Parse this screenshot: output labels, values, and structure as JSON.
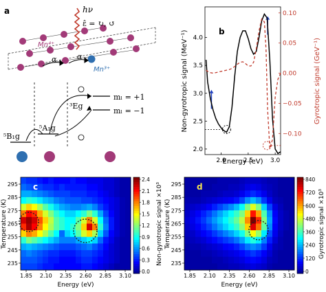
{
  "panels": {
    "a": {
      "letter": "a",
      "photon": "hν",
      "polarization": "ε̂ = ↻, ↺",
      "mn4": "Mn⁴⁺",
      "mn3": "Mn³⁺",
      "alpha1": "α",
      "alpha2": "α",
      "level_5B1g": "⁵B₁g",
      "level_5A1g": "⁵A₁g",
      "level_3Eg": "³Eg",
      "ml_plus": "mₗ = +1",
      "ml_minus": "mₗ = −1"
    },
    "b": {
      "letter": "b"
    },
    "c": {
      "letter": "c"
    },
    "d": {
      "letter": "d"
    }
  },
  "chart_data": [
    {
      "type": "line",
      "panel": "b",
      "xlabel": "Energy (eV)",
      "ylabel": "Non-gyrotropic signal (MeV⁻¹)",
      "y2label": "Gyrotropic signal (GeV⁻¹)",
      "xlim": [
        1.7,
        3.1
      ],
      "ylim": [
        1.9,
        4.55
      ],
      "y2lim": [
        -0.135,
        0.11
      ],
      "xticks": [
        "2.0",
        "2.5",
        "3.0"
      ],
      "yticks": [
        "2.0",
        "2.5",
        "3.0",
        "3.5",
        "4.0"
      ],
      "y2ticks": [
        "−0.10",
        "−0.05",
        "0.00",
        "0.05",
        "0.10"
      ],
      "series": [
        {
          "axis": "left",
          "color": "#000000",
          "style": "solid",
          "x": [
            1.72,
            1.75,
            1.8,
            1.85,
            1.9,
            1.95,
            2.0,
            2.05,
            2.1,
            2.15,
            2.2,
            2.25,
            2.3,
            2.35,
            2.4,
            2.45,
            2.5,
            2.55,
            2.6,
            2.65,
            2.7,
            2.75,
            2.8,
            2.85,
            2.9,
            2.95,
            3.0,
            3.05,
            3.1
          ],
          "y": [
            3.6,
            3.2,
            2.9,
            2.7,
            2.55,
            2.45,
            2.38,
            2.33,
            2.3,
            2.4,
            2.75,
            3.3,
            3.75,
            4.0,
            4.12,
            4.12,
            3.98,
            3.8,
            3.7,
            3.75,
            4.0,
            4.3,
            4.42,
            4.35,
            3.6,
            2.55,
            2.0,
            1.92,
            1.95
          ]
        },
        {
          "axis": "right",
          "color": "#c0392b",
          "style": "dashed",
          "x": [
            1.72,
            1.75,
            1.8,
            1.85,
            1.9,
            1.95,
            2.0,
            2.05,
            2.1,
            2.15,
            2.2,
            2.25,
            2.3,
            2.35,
            2.4,
            2.45,
            2.5,
            2.55,
            2.6,
            2.65,
            2.7,
            2.75,
            2.8,
            2.83,
            2.86,
            2.9,
            2.95,
            3.0,
            3.05,
            3.1
          ],
          "y": [
            0.005,
            0.003,
            0.001,
            0.0,
            0.001,
            0.002,
            0.003,
            0.004,
            0.005,
            0.006,
            0.008,
            0.011,
            0.015,
            0.018,
            0.019,
            0.016,
            0.012,
            0.012,
            0.018,
            0.04,
            0.07,
            0.09,
            0.085,
            0.04,
            -0.06,
            -0.125,
            -0.11,
            -0.04,
            -0.01,
            0.0
          ]
        }
      ]
    },
    {
      "type": "heatmap",
      "panel": "c",
      "xlabel": "Energy (eV)",
      "ylabel": "Temperature (K)",
      "colorbar_label": "Non-gyrotropic signal ×10³",
      "xticks": [
        "1.85",
        "2.10",
        "2.35",
        "2.60",
        "2.85",
        "3.10"
      ],
      "yticks": [
        "295",
        "285",
        "275",
        "265",
        "255",
        "245",
        "235"
      ],
      "cbar_ticks": [
        "0.0",
        "0.3",
        "0.6",
        "0.9",
        "1.2",
        "1.5",
        "1.8",
        "2.1",
        "2.4"
      ],
      "vmin": 0.0,
      "vmax": 2.4,
      "rows": [
        [
          0.45,
          0.4,
          0.4,
          0.35,
          0.3,
          0.35,
          0.3,
          0.3,
          0.3,
          0.35,
          0.3,
          0.3,
          0.25,
          0.25,
          0.25,
          0.2,
          0.2,
          0.15,
          0.1,
          0.1
        ],
        [
          0.55,
          0.5,
          0.45,
          0.45,
          0.4,
          0.4,
          0.35,
          0.4,
          0.35,
          0.35,
          0.35,
          0.35,
          0.3,
          0.3,
          0.25,
          0.2,
          0.2,
          0.15,
          0.1,
          0.1
        ],
        [
          0.7,
          0.7,
          0.65,
          0.6,
          0.55,
          0.5,
          0.45,
          0.45,
          0.45,
          0.4,
          0.4,
          0.4,
          0.35,
          0.35,
          0.3,
          0.25,
          0.2,
          0.15,
          0.1,
          0.1
        ],
        [
          0.9,
          1.0,
          0.95,
          0.85,
          0.75,
          0.7,
          0.6,
          0.55,
          0.5,
          0.5,
          0.5,
          0.45,
          0.45,
          0.4,
          0.35,
          0.3,
          0.25,
          0.2,
          0.12,
          0.1
        ],
        [
          1.4,
          1.6,
          1.5,
          1.3,
          1.1,
          0.95,
          0.8,
          0.7,
          0.65,
          0.6,
          0.6,
          0.65,
          0.7,
          0.6,
          0.45,
          0.35,
          0.25,
          0.2,
          0.12,
          0.1
        ],
        [
          1.8,
          2.1,
          2.0,
          1.7,
          1.4,
          1.2,
          1.0,
          0.9,
          0.8,
          0.8,
          0.9,
          1.0,
          1.2,
          1.0,
          0.7,
          0.45,
          0.3,
          0.2,
          0.12,
          0.1
        ],
        [
          2.2,
          2.35,
          2.2,
          1.9,
          1.6,
          1.35,
          1.1,
          1.0,
          0.9,
          0.9,
          1.1,
          1.4,
          1.8,
          1.4,
          0.9,
          0.55,
          0.35,
          0.2,
          0.12,
          0.1
        ],
        [
          2.0,
          2.3,
          2.1,
          1.8,
          1.5,
          1.3,
          1.1,
          1.0,
          0.9,
          1.0,
          1.2,
          1.6,
          2.2,
          1.8,
          1.0,
          0.6,
          0.35,
          0.2,
          0.12,
          0.1
        ],
        [
          1.6,
          1.8,
          1.7,
          1.5,
          1.3,
          1.1,
          0.9,
          0.55,
          0.8,
          0.9,
          1.1,
          1.4,
          1.6,
          1.3,
          0.8,
          0.5,
          0.3,
          0.2,
          0.12,
          0.1
        ],
        [
          1.0,
          1.2,
          1.1,
          1.0,
          0.9,
          0.8,
          0.7,
          0.6,
          0.6,
          0.6,
          0.7,
          0.8,
          0.9,
          0.8,
          0.55,
          0.35,
          0.25,
          0.15,
          0.1,
          0.1
        ],
        [
          0.7,
          0.75,
          0.7,
          0.65,
          0.6,
          0.55,
          0.5,
          0.45,
          0.45,
          0.45,
          0.5,
          0.55,
          0.6,
          0.5,
          0.4,
          0.3,
          0.2,
          0.15,
          0.1,
          0.1
        ],
        [
          0.55,
          0.6,
          0.55,
          0.5,
          0.45,
          0.4,
          0.4,
          0.35,
          0.35,
          0.35,
          0.4,
          0.45,
          0.45,
          0.4,
          0.35,
          0.25,
          0.2,
          0.15,
          0.1,
          0.1
        ],
        [
          0.5,
          0.5,
          0.5,
          0.45,
          0.4,
          0.35,
          0.35,
          0.3,
          0.3,
          0.3,
          0.35,
          0.4,
          0.4,
          0.35,
          0.3,
          0.25,
          0.2,
          0.15,
          0.1,
          0.1
        ],
        [
          0.45,
          0.45,
          0.45,
          0.4,
          0.35,
          0.35,
          0.3,
          0.3,
          0.3,
          0.3,
          0.3,
          0.35,
          0.35,
          0.3,
          0.25,
          0.2,
          0.15,
          0.1,
          0.1,
          0.1
        ]
      ]
    },
    {
      "type": "heatmap",
      "panel": "d",
      "xlabel": "Energy (eV)",
      "ylabel": "Temperature (K)",
      "colorbar_label": "Gyrotropic signal ×10³",
      "xticks": [
        "1.85",
        "2.10",
        "2.35",
        "2.60",
        "2.85",
        "3.10"
      ],
      "yticks": [
        "295",
        "285",
        "275",
        "265",
        "255",
        "245",
        "235"
      ],
      "cbar_ticks": [
        "0",
        "120",
        "240",
        "360",
        "480",
        "600",
        "720",
        "840"
      ],
      "vmin": 0,
      "vmax": 840,
      "rows": [
        [
          30,
          30,
          30,
          30,
          30,
          30,
          40,
          40,
          40,
          40,
          50,
          60,
          60,
          60,
          50,
          40,
          40,
          30,
          30,
          30
        ],
        [
          30,
          30,
          30,
          30,
          30,
          40,
          40,
          40,
          50,
          50,
          60,
          80,
          90,
          80,
          60,
          50,
          40,
          30,
          30,
          30
        ],
        [
          30,
          30,
          30,
          40,
          40,
          40,
          50,
          60,
          60,
          70,
          90,
          120,
          140,
          120,
          90,
          60,
          40,
          30,
          30,
          30
        ],
        [
          40,
          40,
          40,
          50,
          60,
          70,
          80,
          90,
          100,
          120,
          160,
          220,
          260,
          220,
          150,
          90,
          50,
          40,
          30,
          30
        ],
        [
          50,
          60,
          70,
          80,
          100,
          130,
          160,
          190,
          220,
          260,
          320,
          420,
          500,
          420,
          280,
          160,
          80,
          50,
          30,
          30
        ],
        [
          60,
          80,
          100,
          130,
          160,
          200,
          240,
          280,
          320,
          360,
          420,
          560,
          720,
          600,
          380,
          220,
          100,
          60,
          40,
          30
        ],
        [
          70,
          90,
          120,
          150,
          190,
          230,
          270,
          310,
          350,
          400,
          470,
          620,
          840,
          700,
          420,
          240,
          110,
          60,
          40,
          30
        ],
        [
          60,
          80,
          100,
          130,
          160,
          200,
          240,
          280,
          320,
          360,
          430,
          560,
          760,
          640,
          390,
          220,
          100,
          60,
          40,
          30
        ],
        [
          50,
          60,
          80,
          100,
          120,
          150,
          180,
          210,
          240,
          280,
          330,
          420,
          520,
          440,
          300,
          170,
          90,
          50,
          30,
          30
        ],
        [
          40,
          50,
          60,
          70,
          90,
          110,
          130,
          150,
          170,
          200,
          240,
          300,
          340,
          300,
          210,
          130,
          70,
          40,
          30,
          30
        ],
        [
          30,
          40,
          40,
          50,
          60,
          70,
          80,
          100,
          110,
          130,
          160,
          200,
          220,
          200,
          150,
          90,
          50,
          40,
          30,
          30
        ],
        [
          30,
          30,
          30,
          40,
          40,
          50,
          60,
          70,
          80,
          90,
          110,
          130,
          150,
          130,
          100,
          70,
          40,
          30,
          30,
          30
        ],
        [
          30,
          30,
          30,
          30,
          30,
          40,
          40,
          50,
          60,
          70,
          80,
          100,
          110,
          100,
          80,
          50,
          40,
          30,
          30,
          30
        ],
        [
          30,
          30,
          30,
          30,
          30,
          30,
          40,
          40,
          50,
          50,
          60,
          70,
          80,
          70,
          60,
          40,
          30,
          30,
          30,
          30
        ]
      ]
    }
  ]
}
